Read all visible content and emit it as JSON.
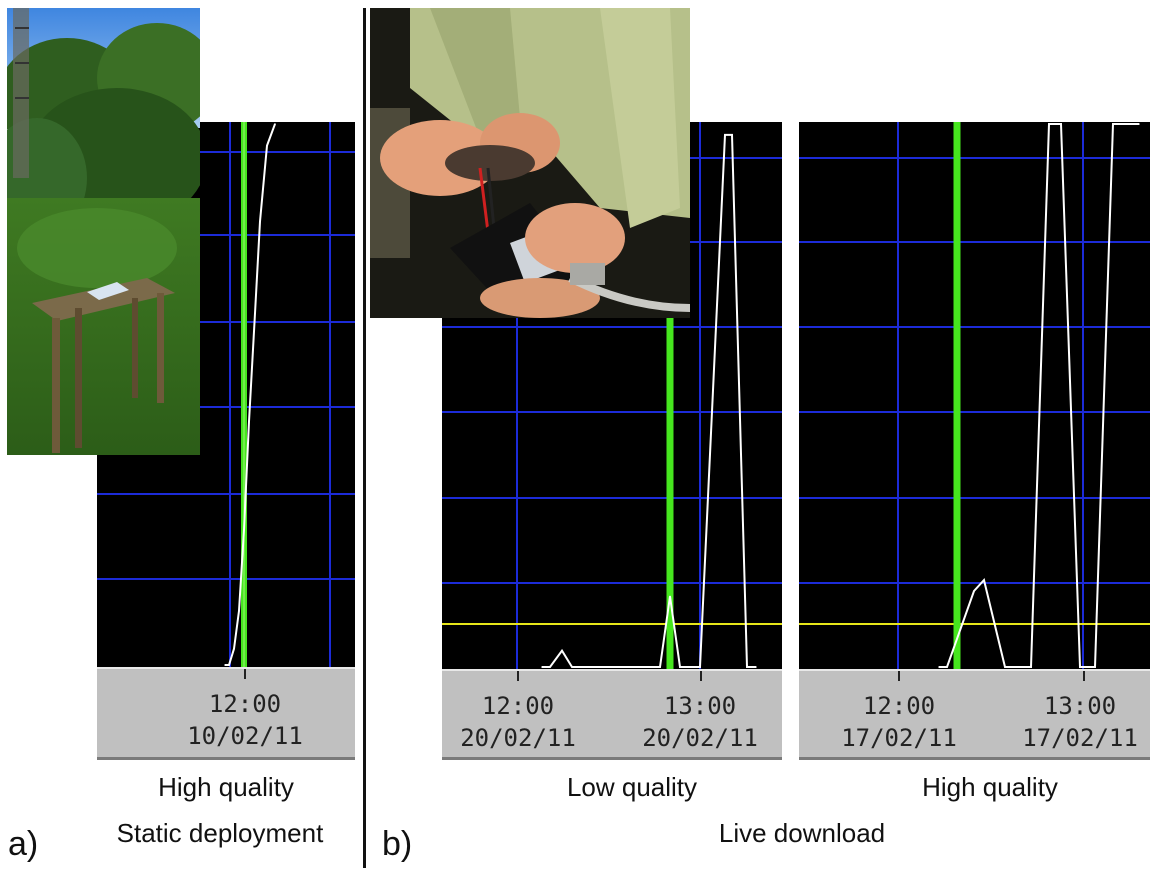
{
  "figure": {
    "panel_a": {
      "letter": "a)",
      "section_caption": "Static deployment",
      "quality_caption": "High quality"
    },
    "panel_b": {
      "letter": "b)",
      "section_caption": "Live download",
      "left_quality_caption": "Low quality",
      "right_quality_caption": "High quality"
    },
    "colors": {
      "background": "#000000",
      "grid": "#1c2bd8",
      "signal": "#ffffff",
      "marker": "#46e61e",
      "threshold": "#e6e619",
      "axis_panel": "#c0c0c0"
    }
  },
  "chart_data": [
    {
      "type": "line",
      "x_ticks": [
        {
          "time": "12:00",
          "date": "10/02/11"
        }
      ],
      "threshold": false,
      "series": [
        {
          "values": [
            0,
            0,
            3,
            10,
            25,
            45,
            65,
            82,
            96,
            100
          ]
        }
      ]
    },
    {
      "type": "line",
      "x_ticks": [
        {
          "time": "12:00",
          "date": "20/02/11"
        },
        {
          "time": "13:00",
          "date": "20/02/11"
        }
      ],
      "threshold": true,
      "series": [
        {
          "values": [
            0,
            0,
            3,
            0,
            0,
            13,
            0,
            0,
            98,
            98,
            0,
            0
          ]
        }
      ]
    },
    {
      "type": "line",
      "x_ticks": [
        {
          "time": "12:00",
          "date": "17/02/11"
        },
        {
          "time": "13:00",
          "date": "17/02/11"
        }
      ],
      "threshold": true,
      "series": [
        {
          "values": [
            0,
            0,
            14,
            16,
            0,
            0,
            100,
            100,
            0,
            0,
            100,
            100
          ]
        }
      ]
    }
  ]
}
